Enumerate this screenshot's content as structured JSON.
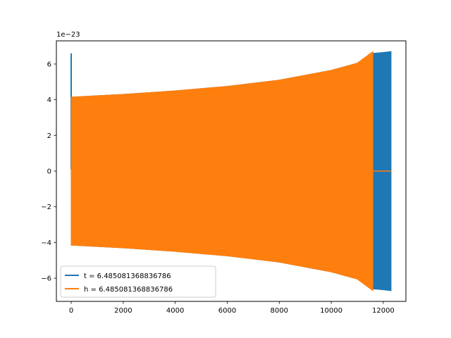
{
  "chart_data": {
    "type": "line",
    "title": "",
    "xlabel": "",
    "ylabel": "",
    "y_offset_text": "1e−23",
    "xlim": [
      -570,
      12870
    ],
    "ylim": [
      -7.3,
      7.3
    ],
    "x_ticks": [
      0,
      2000,
      4000,
      6000,
      8000,
      10000,
      12000
    ],
    "x_tick_labels": [
      "0",
      "2000",
      "4000",
      "6000",
      "8000",
      "10000",
      "12000"
    ],
    "y_ticks": [
      -6,
      -4,
      -2,
      0,
      2,
      4,
      6
    ],
    "y_tick_labels": [
      "−6",
      "−4",
      "−2",
      "0",
      "2",
      "4",
      "6"
    ],
    "grid": false,
    "legend_position": "lower-left",
    "series": [
      {
        "name": "t = 6.485081368836786",
        "color": "#1f77b4",
        "kind": "oscillation-envelope",
        "x": [
          0,
          2000,
          4000,
          6000,
          8000,
          10000,
          11000,
          11600,
          12000,
          12300
        ],
        "upper": [
          4.15,
          4.3,
          4.5,
          4.75,
          5.1,
          5.65,
          6.05,
          6.6,
          6.65,
          6.7
        ],
        "lower": [
          -4.15,
          -4.3,
          -4.5,
          -4.75,
          -5.1,
          -5.65,
          -6.05,
          -6.6,
          -6.65,
          -6.7
        ],
        "spike": {
          "x": 0,
          "top": 6.6,
          "bottom": 0.1
        },
        "zero_line_after": null
      },
      {
        "name": "h = 6.485081368836786",
        "color": "#ff7f0e",
        "kind": "oscillation-envelope",
        "x": [
          0,
          2000,
          4000,
          6000,
          8000,
          10000,
          11000,
          11600
        ],
        "upper": [
          4.15,
          4.3,
          4.5,
          4.75,
          5.1,
          5.65,
          6.05,
          6.7
        ],
        "lower": [
          -4.15,
          -4.3,
          -4.5,
          -4.75,
          -5.1,
          -5.65,
          -6.05,
          -6.7
        ],
        "zero_line_after": {
          "from": 11600,
          "to": 12300,
          "y": 0
        }
      }
    ]
  }
}
